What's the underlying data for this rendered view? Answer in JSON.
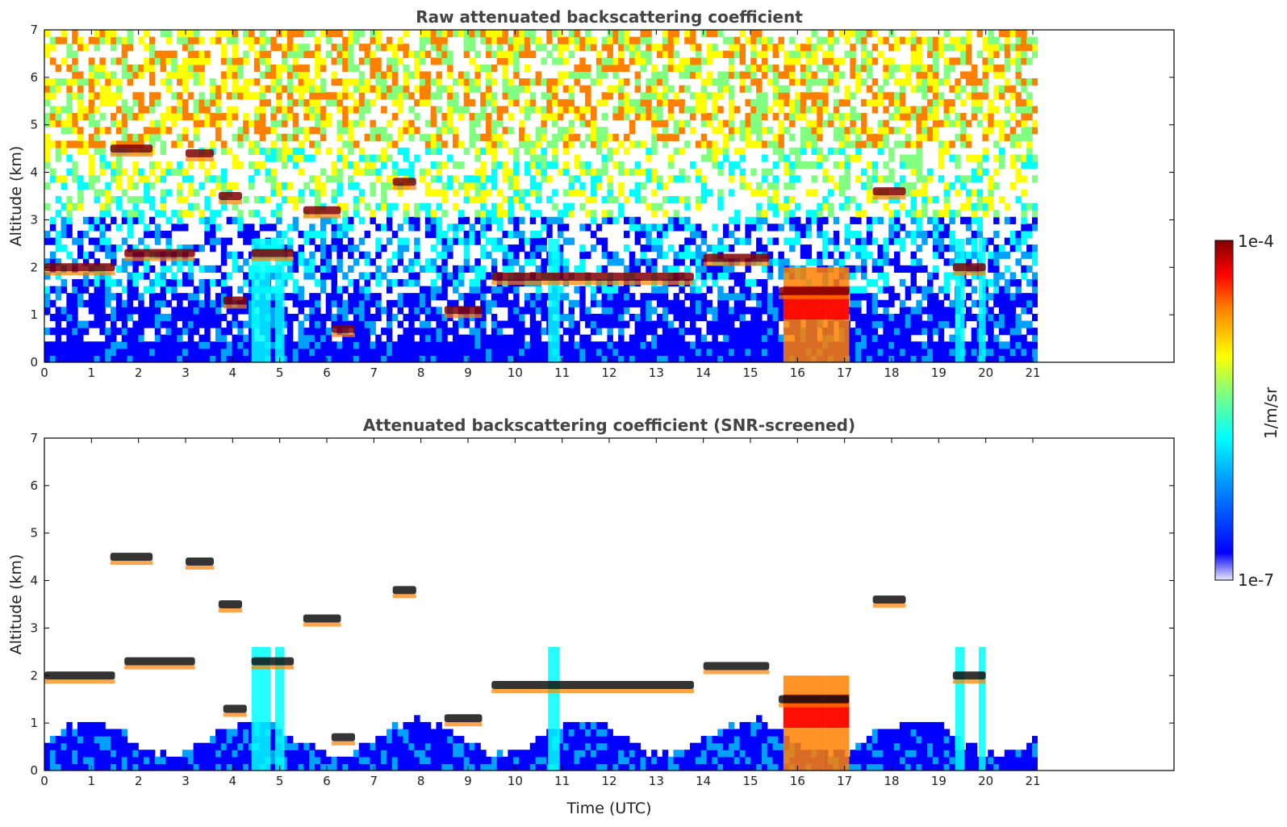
{
  "chart_data": [
    {
      "type": "heatmap",
      "title": "Raw attenuated backscattering coefficient",
      "xlabel": "",
      "ylabel": "Altitude (km)",
      "x_ticks": [
        "0",
        "1",
        "2",
        "3",
        "4",
        "5",
        "6",
        "7",
        "8",
        "9",
        "10",
        "11",
        "12",
        "13",
        "14",
        "15",
        "16",
        "17",
        "18",
        "19",
        "20",
        "21"
      ],
      "y_ticks": [
        "0",
        "1",
        "2",
        "3",
        "4",
        "5",
        "6",
        "7"
      ],
      "xlim": [
        0,
        24
      ],
      "ylim": [
        0,
        7
      ],
      "data_extent_x": [
        0,
        21.1
      ],
      "grid": false,
      "cloud_layers": [
        {
          "t_start": 0.0,
          "t_end": 1.5,
          "altitude": 2.0
        },
        {
          "t_start": 1.4,
          "t_end": 2.3,
          "altitude": 4.5
        },
        {
          "t_start": 1.7,
          "t_end": 3.2,
          "altitude": 2.3
        },
        {
          "t_start": 3.0,
          "t_end": 3.6,
          "altitude": 4.4
        },
        {
          "t_start": 3.7,
          "t_end": 4.2,
          "altitude": 3.5
        },
        {
          "t_start": 3.8,
          "t_end": 4.3,
          "altitude": 1.3
        },
        {
          "t_start": 4.4,
          "t_end": 5.3,
          "altitude": 2.3
        },
        {
          "t_start": 5.5,
          "t_end": 6.3,
          "altitude": 3.2
        },
        {
          "t_start": 6.1,
          "t_end": 6.6,
          "altitude": 0.7
        },
        {
          "t_start": 7.4,
          "t_end": 7.9,
          "altitude": 3.8
        },
        {
          "t_start": 8.5,
          "t_end": 9.3,
          "altitude": 1.1
        },
        {
          "t_start": 9.5,
          "t_end": 13.8,
          "altitude": 1.8
        },
        {
          "t_start": 14.0,
          "t_end": 15.4,
          "altitude": 2.2
        },
        {
          "t_start": 15.6,
          "t_end": 17.1,
          "altitude": 1.5
        },
        {
          "t_start": 17.6,
          "t_end": 18.3,
          "altitude": 3.6
        },
        {
          "t_start": 19.3,
          "t_end": 20.0,
          "altitude": 2.0
        }
      ],
      "precip_columns": [
        {
          "t_start": 4.4,
          "t_end": 4.8
        },
        {
          "t_start": 4.9,
          "t_end": 5.1
        },
        {
          "t_start": 10.7,
          "t_end": 10.95
        },
        {
          "t_start": 15.7,
          "t_end": 16.6
        },
        {
          "t_start": 16.6,
          "t_end": 17.1
        },
        {
          "t_start": 19.35,
          "t_end": 19.55
        },
        {
          "t_start": 19.85,
          "t_end": 20.0
        }
      ]
    },
    {
      "type": "heatmap",
      "title": "Attenuated backscattering coefficient (SNR-screened)",
      "xlabel": "Time (UTC)",
      "ylabel": "Altitude (km)",
      "x_ticks": [
        "0",
        "1",
        "2",
        "3",
        "4",
        "5",
        "6",
        "7",
        "8",
        "9",
        "10",
        "11",
        "12",
        "13",
        "14",
        "15",
        "16",
        "17",
        "18",
        "19",
        "20",
        "21"
      ],
      "y_ticks": [
        "0",
        "1",
        "2",
        "3",
        "4",
        "5",
        "6",
        "7"
      ],
      "xlim": [
        0,
        24
      ],
      "ylim": [
        0,
        7
      ],
      "data_extent_x": [
        0,
        21.1
      ],
      "grid": false
    }
  ],
  "colorbar": {
    "max_label": "1e-4",
    "min_label": "1e-7",
    "unit_label": "1/m/sr",
    "colors": [
      "#e8e8f8",
      "#0000ff",
      "#00a0ff",
      "#00ffff",
      "#80ff80",
      "#ffff00",
      "#ff8000",
      "#ff0000",
      "#800000"
    ]
  }
}
